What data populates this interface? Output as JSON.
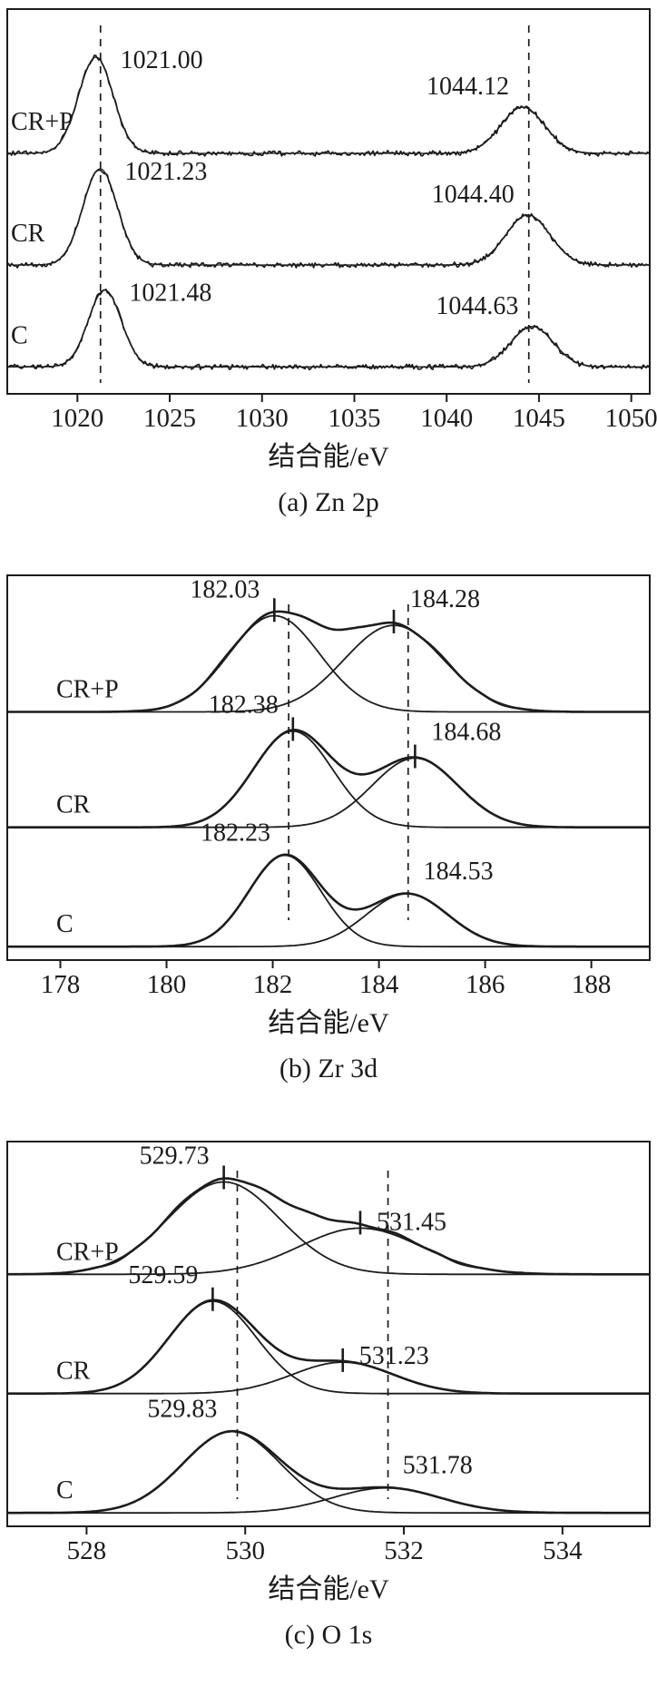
{
  "figure": {
    "background": "#ffffff",
    "line_color": "#1c1c1c"
  },
  "chart_data": [
    {
      "type": "line",
      "id": "zn-2p",
      "caption": "(a) Zn 2p",
      "xlabel": "结合能/eV",
      "x_range": [
        1016.2,
        1051.0
      ],
      "xticks": [
        "1020",
        "1025",
        "1030",
        "1035",
        "1040",
        "1045",
        "1050"
      ],
      "dashed_lines_x": [
        1021.25,
        1044.45
      ],
      "style": "raw",
      "grid": false,
      "legend_position": "inline-left",
      "series": [
        {
          "label": "CR+P",
          "peaks": [
            {
              "center": 1021.0,
              "label": "1021.00",
              "fwhm": 2.2,
              "rel_height": 1.0,
              "label_side": "right"
            },
            {
              "center": 1044.12,
              "label": "1044.12",
              "fwhm": 2.8,
              "rel_height": 0.48,
              "label_side": "left"
            }
          ]
        },
        {
          "label": "CR",
          "peaks": [
            {
              "center": 1021.23,
              "label": "1021.23",
              "fwhm": 2.2,
              "rel_height": 1.0,
              "label_side": "right"
            },
            {
              "center": 1044.4,
              "label": "1044.40",
              "fwhm": 2.8,
              "rel_height": 0.52,
              "label_side": "left"
            }
          ]
        },
        {
          "label": "C",
          "peaks": [
            {
              "center": 1021.48,
              "label": "1021.48",
              "fwhm": 2.1,
              "rel_height": 0.8,
              "label_side": "right"
            },
            {
              "center": 1044.63,
              "label": "1044.63",
              "fwhm": 2.7,
              "rel_height": 0.42,
              "label_side": "left"
            }
          ]
        }
      ]
    },
    {
      "type": "line",
      "id": "zr-3d",
      "caption": "(b) Zr  3d",
      "xlabel": "结合能/eV",
      "x_range": [
        177.0,
        189.1
      ],
      "xticks": [
        "178",
        "180",
        "182",
        "184",
        "186",
        "188"
      ],
      "dashed_lines_x": [
        182.3,
        184.55
      ],
      "style": "fitted",
      "grid": false,
      "legend_position": "inline-left",
      "series": [
        {
          "label": "CR+P",
          "marked": true,
          "peaks": [
            {
              "center": 182.03,
              "label": "182.03",
              "fwhm": 2.0,
              "rel_height": 1.0,
              "label_side": "left"
            },
            {
              "center": 184.28,
              "label": "184.28",
              "fwhm": 2.2,
              "rel_height": 0.9,
              "label_side": "right"
            }
          ]
        },
        {
          "label": "CR",
          "marked": true,
          "peaks": [
            {
              "center": 182.38,
              "label": "182.38",
              "fwhm": 1.75,
              "rel_height": 1.0,
              "label_side": "left"
            },
            {
              "center": 184.68,
              "label": "184.68",
              "fwhm": 1.9,
              "rel_height": 0.72,
              "label_side": "right"
            }
          ]
        },
        {
          "label": "C",
          "marked": false,
          "peaks": [
            {
              "center": 182.23,
              "label": "182.23",
              "fwhm": 1.6,
              "rel_height": 0.95,
              "label_side": "left"
            },
            {
              "center": 184.53,
              "label": "184.53",
              "fwhm": 1.8,
              "rel_height": 0.55,
              "label_side": "right"
            }
          ]
        }
      ]
    },
    {
      "type": "line",
      "id": "o-1s",
      "caption": "(c) O 1s",
      "xlabel": "结合能/eV",
      "x_range": [
        527.0,
        535.1
      ],
      "xticks": [
        "528",
        "530",
        "532",
        "534"
      ],
      "dashed_lines_x": [
        529.9,
        531.8
      ],
      "style": "fitted",
      "grid": false,
      "legend_position": "inline-left",
      "series": [
        {
          "label": "CR+P",
          "marked": true,
          "peaks": [
            {
              "center": 529.73,
              "label": "529.73",
              "fwhm": 1.65,
              "rel_height": 1.0,
              "label_side": "left"
            },
            {
              "center": 531.45,
              "label": "531.45",
              "fwhm": 1.8,
              "rel_height": 0.5,
              "label_side": "right"
            }
          ]
        },
        {
          "label": "CR",
          "marked": true,
          "peaks": [
            {
              "center": 529.59,
              "label": "529.59",
              "fwhm": 1.3,
              "rel_height": 1.0,
              "label_side": "left"
            },
            {
              "center": 531.23,
              "label": "531.23",
              "fwhm": 1.5,
              "rel_height": 0.34,
              "label_side": "right"
            }
          ]
        },
        {
          "label": "C",
          "marked": false,
          "peaks": [
            {
              "center": 529.83,
              "label": "529.83",
              "fwhm": 1.45,
              "rel_height": 0.88,
              "label_side": "left"
            },
            {
              "center": 531.78,
              "label": "531.78",
              "fwhm": 1.6,
              "rel_height": 0.27,
              "label_side": "right"
            }
          ]
        }
      ]
    }
  ]
}
